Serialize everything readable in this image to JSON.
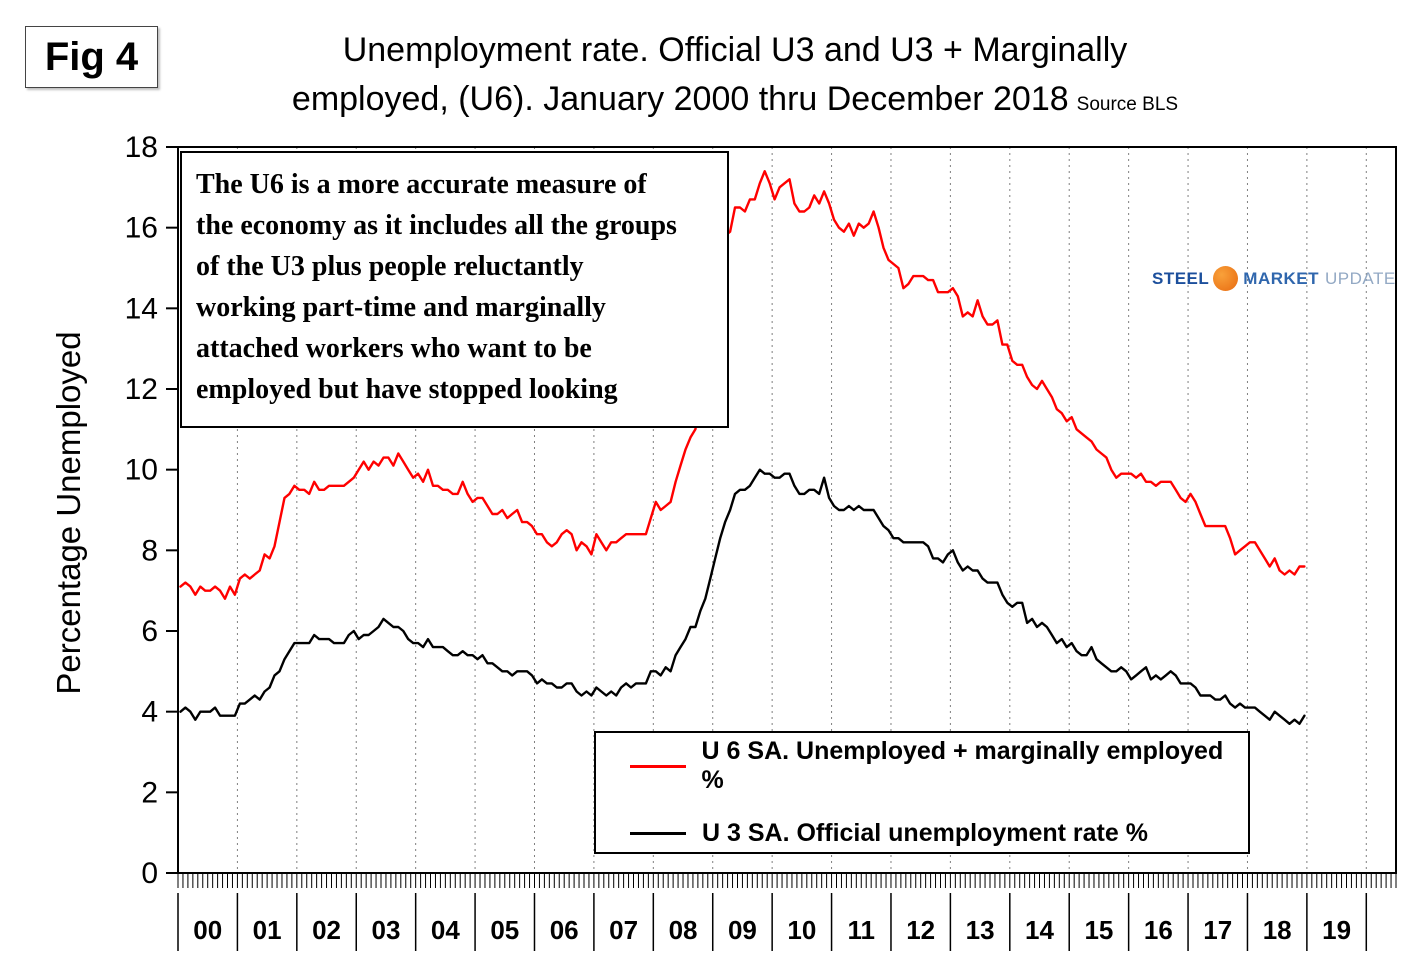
{
  "fig_label": "Fig 4",
  "title_line1": "Unemployment rate. Official U3 and U3 + Marginally",
  "title_line2": "employed, (U6). January 2000 thru December 2018",
  "source": "Source BLS",
  "y_axis_label": "Percentage Unemployed",
  "annotation_lines": [
    "The U6 is a more accurate measure of",
    "the economy as it includes all the groups",
    "of the U3 plus people reluctantly",
    "working part-time and marginally",
    "attached workers who want to be",
    "employed but have stopped looking"
  ],
  "logo": {
    "steel": "STEEL",
    "market": "MARKET",
    "update": "UPDATE"
  },
  "legend": [
    {
      "label": "U 6 SA. Unemployed + marginally employed %",
      "color": "#ff0000"
    },
    {
      "label": "U 3 SA. Official unemployment rate %",
      "color": "#000000"
    }
  ],
  "chart_data": {
    "type": "line",
    "title": "Unemployment rate. Official U3 and U3 + Marginally employed, (U6). January 2000 thru December 2018",
    "source": "BLS",
    "xlabel": "",
    "ylabel": "Percentage Unemployed",
    "ylim": [
      0,
      18
    ],
    "y_ticks": [
      0,
      2,
      4,
      6,
      8,
      10,
      12,
      14,
      16,
      18
    ],
    "x_unit": "month",
    "x_start": "2000-01",
    "x_end": "2018-12",
    "x_tick_labels": [
      "00",
      "01",
      "02",
      "03",
      "04",
      "05",
      "06",
      "07",
      "08",
      "09",
      "10",
      "11",
      "12",
      "13",
      "14",
      "15",
      "16",
      "17",
      "18",
      "19"
    ],
    "grid": "vertical-dashed-yearly",
    "legend_position": "bottom-center",
    "series": [
      {
        "name": "U 6 SA. Unemployed + marginally employed %",
        "color": "#ff0000",
        "values": [
          7.1,
          7.2,
          7.1,
          6.9,
          7.1,
          7.0,
          7.0,
          7.1,
          7.0,
          6.8,
          7.1,
          6.9,
          7.3,
          7.4,
          7.3,
          7.4,
          7.5,
          7.9,
          7.8,
          8.1,
          8.7,
          9.3,
          9.4,
          9.6,
          9.5,
          9.5,
          9.4,
          9.7,
          9.5,
          9.5,
          9.6,
          9.6,
          9.6,
          9.6,
          9.7,
          9.8,
          10.0,
          10.2,
          10.0,
          10.2,
          10.1,
          10.3,
          10.3,
          10.1,
          10.4,
          10.2,
          10.0,
          9.8,
          9.9,
          9.7,
          10.0,
          9.6,
          9.6,
          9.5,
          9.5,
          9.4,
          9.4,
          9.7,
          9.4,
          9.2,
          9.3,
          9.3,
          9.1,
          8.9,
          8.9,
          9.0,
          8.8,
          8.9,
          9.0,
          8.7,
          8.7,
          8.6,
          8.4,
          8.4,
          8.2,
          8.1,
          8.2,
          8.4,
          8.5,
          8.4,
          8.0,
          8.2,
          8.1,
          7.9,
          8.4,
          8.2,
          8.0,
          8.2,
          8.2,
          8.3,
          8.4,
          8.4,
          8.4,
          8.4,
          8.4,
          8.8,
          9.2,
          9.0,
          9.1,
          9.2,
          9.7,
          10.1,
          10.5,
          10.8,
          11.0,
          11.8,
          12.6,
          13.6,
          14.2,
          15.2,
          15.8,
          15.9,
          16.5,
          16.5,
          16.4,
          16.7,
          16.7,
          17.1,
          17.4,
          17.1,
          16.7,
          17.0,
          17.1,
          17.2,
          16.6,
          16.4,
          16.4,
          16.5,
          16.8,
          16.6,
          16.9,
          16.6,
          16.2,
          16.0,
          15.9,
          16.1,
          15.8,
          16.1,
          16.0,
          16.1,
          16.4,
          16.0,
          15.5,
          15.2,
          15.1,
          15.0,
          14.5,
          14.6,
          14.8,
          14.8,
          14.8,
          14.7,
          14.7,
          14.4,
          14.4,
          14.4,
          14.5,
          14.3,
          13.8,
          13.9,
          13.8,
          14.2,
          13.8,
          13.6,
          13.6,
          13.7,
          13.1,
          13.1,
          12.7,
          12.6,
          12.6,
          12.3,
          12.1,
          12.0,
          12.2,
          12.0,
          11.8,
          11.5,
          11.4,
          11.2,
          11.3,
          11.0,
          10.9,
          10.8,
          10.7,
          10.5,
          10.4,
          10.3,
          10.0,
          9.8,
          9.9,
          9.9,
          9.9,
          9.8,
          9.9,
          9.7,
          9.7,
          9.6,
          9.7,
          9.7,
          9.7,
          9.5,
          9.3,
          9.2,
          9.4,
          9.2,
          8.9,
          8.6,
          8.6,
          8.6,
          8.6,
          8.6,
          8.3,
          7.9,
          8.0,
          8.1,
          8.2,
          8.2,
          8.0,
          7.8,
          7.6,
          7.8,
          7.5,
          7.4,
          7.5,
          7.4,
          7.6,
          7.6
        ]
      },
      {
        "name": "U 3 SA. Official unemployment rate %",
        "color": "#000000",
        "values": [
          4.0,
          4.1,
          4.0,
          3.8,
          4.0,
          4.0,
          4.0,
          4.1,
          3.9,
          3.9,
          3.9,
          3.9,
          4.2,
          4.2,
          4.3,
          4.4,
          4.3,
          4.5,
          4.6,
          4.9,
          5.0,
          5.3,
          5.5,
          5.7,
          5.7,
          5.7,
          5.7,
          5.9,
          5.8,
          5.8,
          5.8,
          5.7,
          5.7,
          5.7,
          5.9,
          6.0,
          5.8,
          5.9,
          5.9,
          6.0,
          6.1,
          6.3,
          6.2,
          6.1,
          6.1,
          6.0,
          5.8,
          5.7,
          5.7,
          5.6,
          5.8,
          5.6,
          5.6,
          5.6,
          5.5,
          5.4,
          5.4,
          5.5,
          5.4,
          5.4,
          5.3,
          5.4,
          5.2,
          5.2,
          5.1,
          5.0,
          5.0,
          4.9,
          5.0,
          5.0,
          5.0,
          4.9,
          4.7,
          4.8,
          4.7,
          4.7,
          4.6,
          4.6,
          4.7,
          4.7,
          4.5,
          4.4,
          4.5,
          4.4,
          4.6,
          4.5,
          4.4,
          4.5,
          4.4,
          4.6,
          4.7,
          4.6,
          4.7,
          4.7,
          4.7,
          5.0,
          5.0,
          4.9,
          5.1,
          5.0,
          5.4,
          5.6,
          5.8,
          6.1,
          6.1,
          6.5,
          6.8,
          7.3,
          7.8,
          8.3,
          8.7,
          9.0,
          9.4,
          9.5,
          9.5,
          9.6,
          9.8,
          10.0,
          9.9,
          9.9,
          9.8,
          9.8,
          9.9,
          9.9,
          9.6,
          9.4,
          9.4,
          9.5,
          9.5,
          9.4,
          9.8,
          9.3,
          9.1,
          9.0,
          9.0,
          9.1,
          9.0,
          9.1,
          9.0,
          9.0,
          9.0,
          8.8,
          8.6,
          8.5,
          8.3,
          8.3,
          8.2,
          8.2,
          8.2,
          8.2,
          8.2,
          8.1,
          7.8,
          7.8,
          7.7,
          7.9,
          8.0,
          7.7,
          7.5,
          7.6,
          7.5,
          7.5,
          7.3,
          7.2,
          7.2,
          7.2,
          6.9,
          6.7,
          6.6,
          6.7,
          6.7,
          6.2,
          6.3,
          6.1,
          6.2,
          6.1,
          5.9,
          5.7,
          5.8,
          5.6,
          5.7,
          5.5,
          5.4,
          5.4,
          5.6,
          5.3,
          5.2,
          5.1,
          5.0,
          5.0,
          5.1,
          5.0,
          4.8,
          4.9,
          5.0,
          5.1,
          4.8,
          4.9,
          4.8,
          4.9,
          5.0,
          4.9,
          4.7,
          4.7,
          4.7,
          4.6,
          4.4,
          4.4,
          4.4,
          4.3,
          4.3,
          4.4,
          4.2,
          4.1,
          4.2,
          4.1,
          4.1,
          4.1,
          4.0,
          3.9,
          3.8,
          4.0,
          3.9,
          3.8,
          3.7,
          3.8,
          3.7,
          3.9
        ]
      }
    ]
  }
}
